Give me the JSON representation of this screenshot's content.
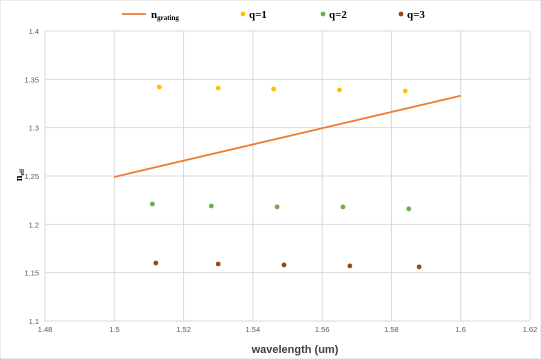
{
  "chart_data": {
    "type": "scatter",
    "xlabel": "wavelength (um)",
    "ylabel": {
      "main": "n",
      "sub": "eff"
    },
    "xlim": [
      1.48,
      1.62
    ],
    "ylim": [
      1.1,
      1.4
    ],
    "xticks": [
      "1.48",
      "1.5",
      "1.52",
      "1.54",
      "1.56",
      "1.58",
      "1.6",
      "1.62"
    ],
    "yticks": [
      "1.1",
      "1.15",
      "1.2",
      "1.25",
      "1.3",
      "1.35",
      "1.4"
    ],
    "grid": true,
    "legend_position": "top",
    "series": [
      {
        "name": "n",
        "name_sub": "grating",
        "kind": "line",
        "color": "#ED7D31",
        "x": [
          1.5,
          1.6
        ],
        "y": [
          1.249,
          1.333
        ]
      },
      {
        "name": "q=1",
        "kind": "scatter",
        "color": "#FFC000",
        "x": [
          1.513,
          1.53,
          1.546,
          1.565,
          1.584
        ],
        "y": [
          1.342,
          1.341,
          1.34,
          1.339,
          1.338
        ]
      },
      {
        "name": "q=2",
        "kind": "scatter",
        "color": "#70AD47",
        "x": [
          1.511,
          1.528,
          1.547,
          1.566,
          1.585
        ],
        "y": [
          1.221,
          1.219,
          1.218,
          1.218,
          1.216
        ]
      },
      {
        "name": "q=3",
        "kind": "scatter",
        "color": "#9E480E",
        "x": [
          1.512,
          1.53,
          1.549,
          1.568,
          1.588
        ],
        "y": [
          1.16,
          1.159,
          1.158,
          1.157,
          1.156
        ]
      }
    ]
  }
}
